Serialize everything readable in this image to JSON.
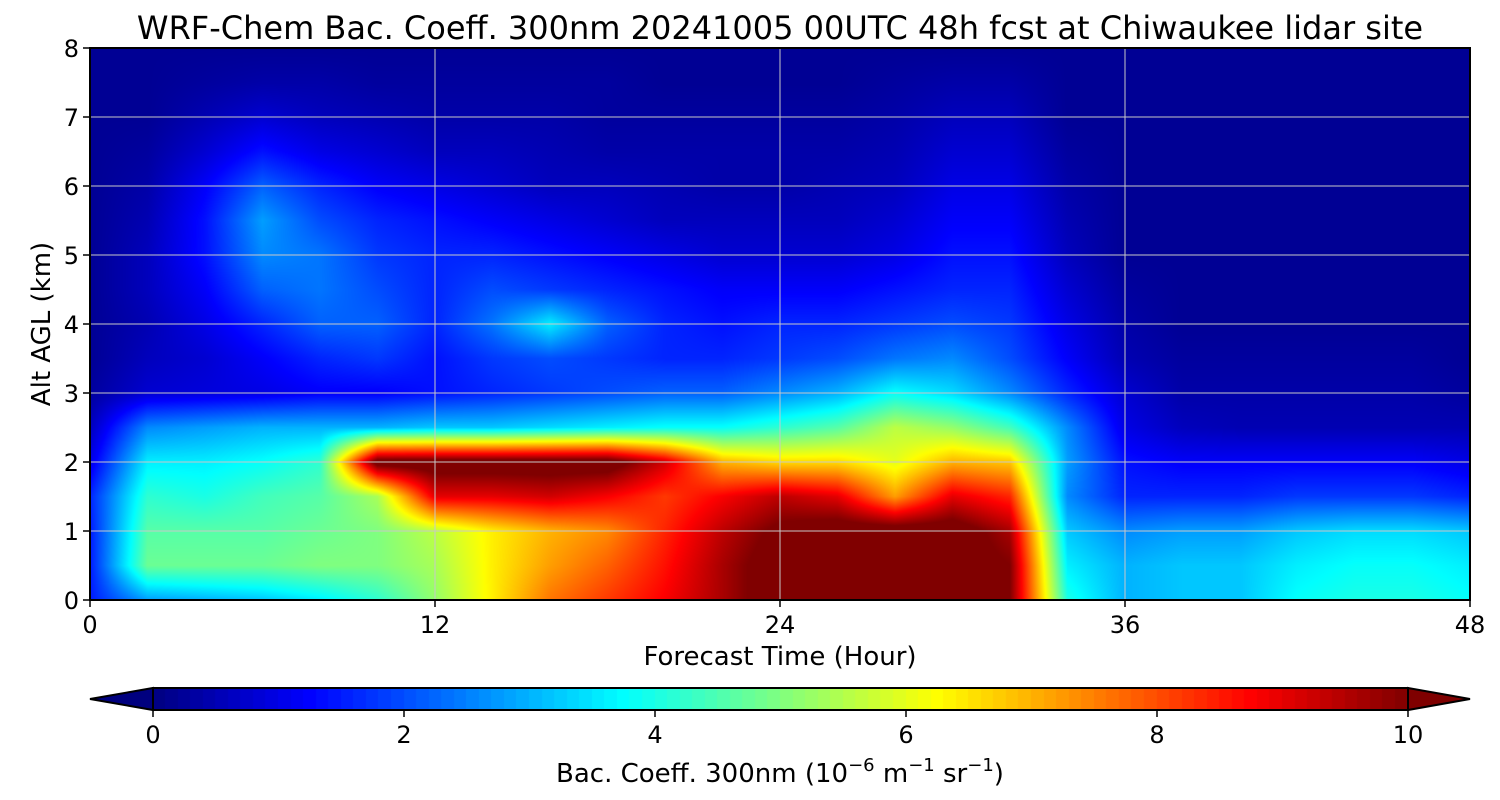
{
  "chart_data": {
    "type": "heatmap",
    "title": "WRF-Chem Bac. Coeff. 300nm  20241005 00UTC 48h fcst at Chiwaukee lidar site",
    "xlabel": "Forecast Time (Hour)",
    "ylabel": "Alt AGL (km)",
    "xlim": [
      0,
      48
    ],
    "ylim": [
      0,
      8
    ],
    "x_ticks": [
      "0",
      "12",
      "24",
      "36",
      "48"
    ],
    "y_ticks": [
      "0",
      "1",
      "2",
      "3",
      "4",
      "5",
      "6",
      "7",
      "8"
    ],
    "grid": true,
    "x": [
      0,
      2,
      4,
      6,
      8,
      10,
      12,
      14,
      16,
      18,
      20,
      22,
      24,
      26,
      28,
      30,
      32,
      34,
      36,
      38,
      40,
      42,
      44,
      46,
      48
    ],
    "y": [
      0,
      0.5,
      1.0,
      1.5,
      2.0,
      2.5,
      3.0,
      3.5,
      4.0,
      4.5,
      5.0,
      5.5,
      6.0,
      6.5,
      7.0,
      7.5,
      8.0
    ],
    "z": [
      [
        1.5,
        2.8,
        3.0,
        3.2,
        3.6,
        4.2,
        5.2,
        6.4,
        7.6,
        8.2,
        8.8,
        9.6,
        10.5,
        10.5,
        10.5,
        10.5,
        10.0,
        4.0,
        3.0,
        3.2,
        3.2,
        3.8,
        4.0,
        4.0,
        3.8
      ],
      [
        1.5,
        4.8,
        4.8,
        4.8,
        5.0,
        5.0,
        5.4,
        6.4,
        7.2,
        7.8,
        8.6,
        9.6,
        10.5,
        10.5,
        10.5,
        10.5,
        10.0,
        3.6,
        3.0,
        3.2,
        3.2,
        3.6,
        3.8,
        3.8,
        3.6
      ],
      [
        1.5,
        4.6,
        4.6,
        4.6,
        4.8,
        5.0,
        5.6,
        6.4,
        7.0,
        7.4,
        8.4,
        9.4,
        10.2,
        10.5,
        10.5,
        10.5,
        9.6,
        3.2,
        2.6,
        2.8,
        2.8,
        3.2,
        3.4,
        3.4,
        3.2
      ],
      [
        1.6,
        4.2,
        4.0,
        4.4,
        4.6,
        5.4,
        9.0,
        9.0,
        9.2,
        8.8,
        8.2,
        8.8,
        9.4,
        9.0,
        7.2,
        9.0,
        8.4,
        2.6,
        1.6,
        1.6,
        1.6,
        1.8,
        1.8,
        1.8,
        1.6
      ],
      [
        1.0,
        3.6,
        3.6,
        3.8,
        4.2,
        10.5,
        10.5,
        10.5,
        10.5,
        10.5,
        9.2,
        7.0,
        6.6,
        6.6,
        6.0,
        7.0,
        6.8,
        2.8,
        1.4,
        1.2,
        1.2,
        1.2,
        1.2,
        1.2,
        1.0
      ],
      [
        0.6,
        2.6,
        2.8,
        3.0,
        3.0,
        3.0,
        3.2,
        3.2,
        3.4,
        3.6,
        3.8,
        3.8,
        4.2,
        4.6,
        5.6,
        5.2,
        4.4,
        2.6,
        1.0,
        0.6,
        0.5,
        0.5,
        0.5,
        0.5,
        0.5
      ],
      [
        0.3,
        0.8,
        0.9,
        1.0,
        1.2,
        1.2,
        1.4,
        1.6,
        1.8,
        2.0,
        2.2,
        2.2,
        2.6,
        3.0,
        3.8,
        3.4,
        2.6,
        1.6,
        0.8,
        0.4,
        0.4,
        0.4,
        0.4,
        0.4,
        0.3
      ],
      [
        0.2,
        0.6,
        0.8,
        1.2,
        1.6,
        1.8,
        1.4,
        1.8,
        2.0,
        1.8,
        1.6,
        1.6,
        1.8,
        2.0,
        2.4,
        2.6,
        2.0,
        1.2,
        0.5,
        0.3,
        0.3,
        0.3,
        0.3,
        0.3,
        0.2
      ],
      [
        0.2,
        0.5,
        1.0,
        1.6,
        2.2,
        2.2,
        1.6,
        2.4,
        3.6,
        2.2,
        1.6,
        1.4,
        1.6,
        1.6,
        1.8,
        2.0,
        1.8,
        1.0,
        0.4,
        0.2,
        0.2,
        0.2,
        0.2,
        0.2,
        0.2
      ],
      [
        0.2,
        0.6,
        1.2,
        2.2,
        2.4,
        2.0,
        1.6,
        2.0,
        1.8,
        1.6,
        1.4,
        1.2,
        1.2,
        1.2,
        1.4,
        1.6,
        1.6,
        0.8,
        0.3,
        0.2,
        0.2,
        0.2,
        0.2,
        0.2,
        0.2
      ],
      [
        0.2,
        0.6,
        1.4,
        2.6,
        2.4,
        1.8,
        1.6,
        1.6,
        1.4,
        1.2,
        1.0,
        0.8,
        0.8,
        0.8,
        1.0,
        1.4,
        1.4,
        0.6,
        0.2,
        0.2,
        0.2,
        0.2,
        0.2,
        0.2,
        0.2
      ],
      [
        0.2,
        0.5,
        1.4,
        2.8,
        2.0,
        1.6,
        1.4,
        1.2,
        1.0,
        0.8,
        0.6,
        0.6,
        0.6,
        0.6,
        0.8,
        1.2,
        1.2,
        0.5,
        0.2,
        0.2,
        0.2,
        0.2,
        0.2,
        0.2,
        0.2
      ],
      [
        0.2,
        0.4,
        1.2,
        2.2,
        1.6,
        1.2,
        1.0,
        0.8,
        0.6,
        0.6,
        0.5,
        0.4,
        0.4,
        0.5,
        0.6,
        1.0,
        1.0,
        0.4,
        0.2,
        0.2,
        0.2,
        0.2,
        0.2,
        0.2,
        0.2
      ],
      [
        0.2,
        0.3,
        0.8,
        1.4,
        1.0,
        0.8,
        0.6,
        0.6,
        0.5,
        0.4,
        0.4,
        0.4,
        0.4,
        0.4,
        0.5,
        0.8,
        0.8,
        0.3,
        0.2,
        0.2,
        0.2,
        0.2,
        0.2,
        0.2,
        0.2
      ],
      [
        0.2,
        0.2,
        0.5,
        0.8,
        0.6,
        0.5,
        0.4,
        0.4,
        0.4,
        0.3,
        0.3,
        0.3,
        0.3,
        0.3,
        0.4,
        0.6,
        0.6,
        0.2,
        0.2,
        0.2,
        0.2,
        0.2,
        0.2,
        0.2,
        0.2
      ],
      [
        0.2,
        0.2,
        0.3,
        0.4,
        0.4,
        0.3,
        0.3,
        0.3,
        0.3,
        0.3,
        0.2,
        0.2,
        0.2,
        0.2,
        0.3,
        0.4,
        0.4,
        0.2,
        0.2,
        0.2,
        0.2,
        0.2,
        0.2,
        0.2,
        0.2
      ],
      [
        0.2,
        0.2,
        0.2,
        0.2,
        0.2,
        0.2,
        0.2,
        0.2,
        0.2,
        0.2,
        0.2,
        0.2,
        0.2,
        0.2,
        0.2,
        0.2,
        0.2,
        0.2,
        0.2,
        0.2,
        0.2,
        0.2,
        0.2,
        0.2,
        0.2
      ]
    ],
    "colorbar": {
      "min": 0,
      "max": 10,
      "ticks": [
        "0",
        "2",
        "4",
        "6",
        "8",
        "10"
      ],
      "extend": "both",
      "colormap": "jet",
      "label_main": "Bac. Coeff. 300nm  (10",
      "label_exp1": "−6",
      "label_mid": " m",
      "label_exp2": "−1",
      "label_mid2": " sr",
      "label_exp3": "−1",
      "label_end": ")"
    }
  }
}
